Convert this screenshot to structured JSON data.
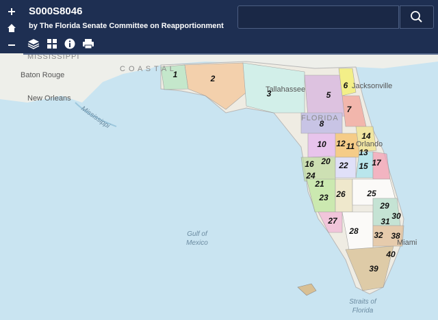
{
  "header": {
    "title": "S000S8046",
    "subtitle": "by The Florida Senate Committee on Reapportionment"
  },
  "map_labels": {
    "mississippi": "MISSISSIPPI",
    "coastal": "C O A S T A L",
    "baton_rouge": "Baton Rouge",
    "new_orleans": "New Orleans",
    "mississippi_river": "Mississippi",
    "tallahassee": "Tallahassee",
    "jacksonville": "Jacksonville",
    "florida": "FLORIDA",
    "orlando": "Orlando",
    "miami": "Miami",
    "gulf_line1": "Gulf of",
    "gulf_line2": "Mexico",
    "straits_line1": "Straits of",
    "straits_line2": "Florida"
  },
  "districts": [
    "1",
    "2",
    "3",
    "5",
    "6",
    "7",
    "8",
    "10",
    "12",
    "11",
    "14",
    "13",
    "16",
    "20",
    "22",
    "15",
    "17",
    "24",
    "21",
    "26",
    "25",
    "23",
    "29",
    "30",
    "27",
    "31",
    "28",
    "32",
    "38",
    "40",
    "39"
  ]
}
